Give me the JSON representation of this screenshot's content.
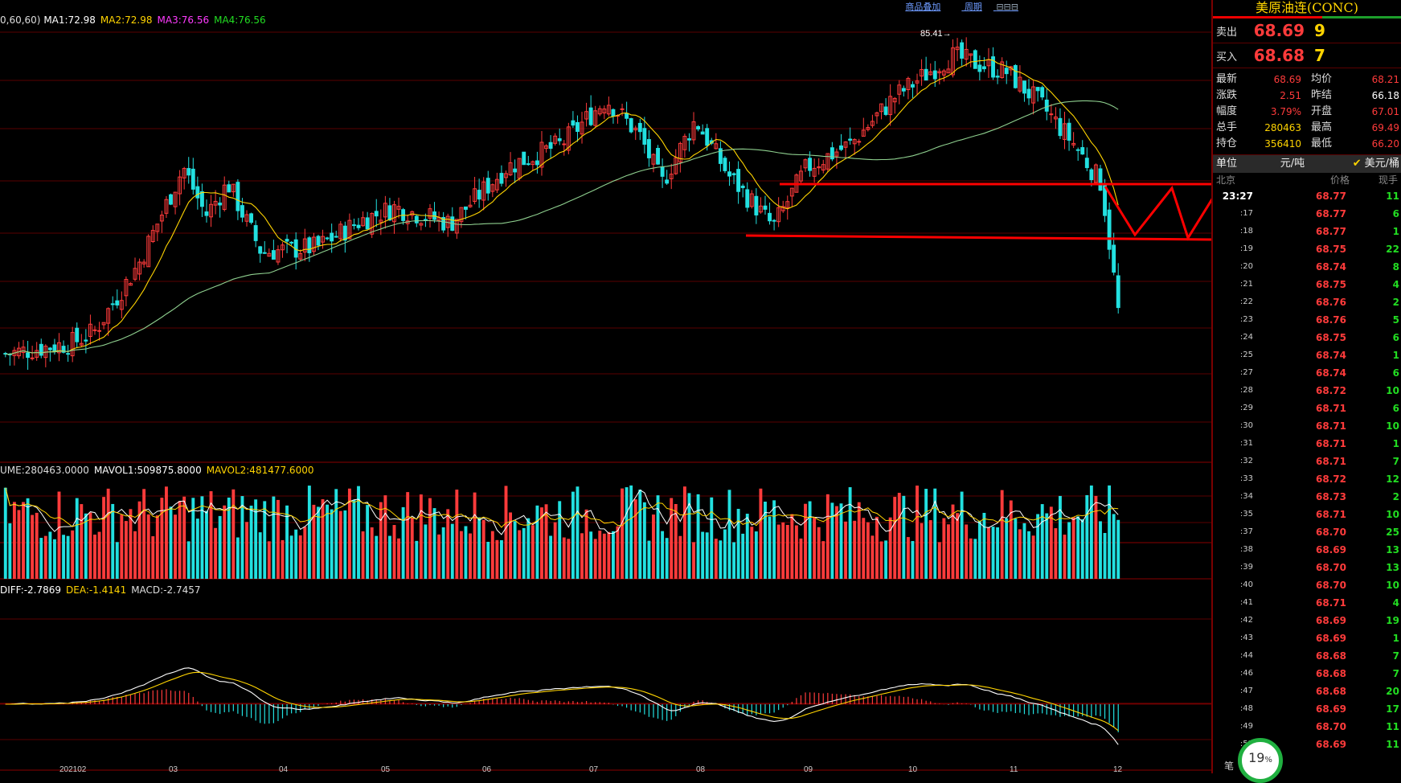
{
  "nav": {
    "overlay_link": "商品叠加",
    "period_link": "周期"
  },
  "main_panel": {
    "ma_params": "0,60,60)",
    "ma_items": [
      {
        "label": "MA1:72.98",
        "color": "#ffffff"
      },
      {
        "label": "MA2:72.98",
        "color": "#ffd400"
      },
      {
        "label": "MA3:76.56",
        "color": "#ff3bff"
      },
      {
        "label": "MA4:76.56",
        "color": "#22dd22"
      }
    ],
    "high_label": "85.41"
  },
  "volume_panel": {
    "items": [
      {
        "label": "UME:280463.0000",
        "color": "#dddddd"
      },
      {
        "label": "MAVOL1:509875.8000",
        "color": "#ffffff"
      },
      {
        "label": "MAVOL2:481477.6000",
        "color": "#ffd400"
      }
    ]
  },
  "macd_panel": {
    "items": [
      {
        "label": "DIFF:-2.7869",
        "color": "#ffffff"
      },
      {
        "label": "DEA:-1.4141",
        "color": "#ffd400"
      },
      {
        "label": "MACD:-2.7457",
        "color": "#dddddd"
      }
    ]
  },
  "x_axis": {
    "labels": [
      "202102",
      "03",
      "04",
      "05",
      "06",
      "07",
      "08",
      "09",
      "10",
      "11",
      "12"
    ]
  },
  "chart_data": [
    {
      "type": "candlestick",
      "anchors": [
        {
          "t": 0,
          "price": 66.8
        },
        {
          "t": 0.06,
          "price": 67.5
        },
        {
          "t": 0.08,
          "price": 68.2
        },
        {
          "t": 0.12,
          "price": 72.5
        },
        {
          "t": 0.16,
          "price": 78.5
        },
        {
          "t": 0.18,
          "price": 75.5
        },
        {
          "t": 0.2,
          "price": 77.5
        },
        {
          "t": 0.23,
          "price": 73.2
        },
        {
          "t": 0.28,
          "price": 73.5
        },
        {
          "t": 0.32,
          "price": 75.2
        },
        {
          "t": 0.35,
          "price": 76.0
        },
        {
          "t": 0.4,
          "price": 75.0
        },
        {
          "t": 0.45,
          "price": 78.5
        },
        {
          "t": 0.5,
          "price": 80.0
        },
        {
          "t": 0.54,
          "price": 82.8
        },
        {
          "t": 0.57,
          "price": 80.5
        },
        {
          "t": 0.59,
          "price": 77.5
        },
        {
          "t": 0.62,
          "price": 81.5
        },
        {
          "t": 0.65,
          "price": 78.0
        },
        {
          "t": 0.69,
          "price": 74.8
        },
        {
          "t": 0.72,
          "price": 78.5
        },
        {
          "t": 0.76,
          "price": 80.0
        },
        {
          "t": 0.8,
          "price": 83.0
        },
        {
          "t": 0.85,
          "price": 85.5
        },
        {
          "t": 0.9,
          "price": 84.5
        },
        {
          "t": 0.93,
          "price": 82.5
        },
        {
          "t": 0.96,
          "price": 80.0
        },
        {
          "t": 0.985,
          "price": 77.5
        },
        {
          "t": 1,
          "price": 69.5
        }
      ],
      "bars": 250,
      "high_label": 85.41
    }
  ],
  "right_panel": {
    "title": "美原油连(CONC)",
    "sell": {
      "label": "卖出",
      "price": "68.69",
      "qty": "9"
    },
    "buy": {
      "label": "买入",
      "price": "68.68",
      "qty": "7"
    },
    "stats": [
      {
        "k": "最新",
        "v": "68.69",
        "vc": "#ff3b3b",
        "k2": "均价",
        "v2": "68.21",
        "v2c": "#ff3b3b"
      },
      {
        "k": "涨跌",
        "v": "2.51",
        "vc": "#ff3b3b",
        "k2": "昨结",
        "v2": "66.18",
        "v2c": "#ffffff"
      },
      {
        "k": "幅度",
        "v": "3.79%",
        "vc": "#ff3b3b",
        "k2": "开盘",
        "v2": "67.01",
        "v2c": "#ff3b3b"
      },
      {
        "k": "总手",
        "v": "280463",
        "vc": "#ffd400",
        "k2": "最高",
        "v2": "69.49",
        "v2c": "#ff3b3b"
      },
      {
        "k": "持仓",
        "v": "356410",
        "vc": "#ffd400",
        "k2": "最低",
        "v2": "66.20",
        "v2c": "#ff3b3b"
      }
    ],
    "unit": {
      "label": "单位",
      "yuan": "元/吨",
      "usd": "美元/桶"
    },
    "tick_header": {
      "time": "北京",
      "price": "价格",
      "qty": "现手"
    },
    "ticks": [
      {
        "t": "23:27",
        "p": "68.77",
        "q": "11"
      },
      {
        "t": ":17",
        "p": "68.77",
        "q": "6"
      },
      {
        "t": ":18",
        "p": "68.77",
        "q": "1"
      },
      {
        "t": ":19",
        "p": "68.75",
        "q": "22"
      },
      {
        "t": ":20",
        "p": "68.74",
        "q": "8"
      },
      {
        "t": ":21",
        "p": "68.75",
        "q": "4"
      },
      {
        "t": ":22",
        "p": "68.76",
        "q": "2"
      },
      {
        "t": ":23",
        "p": "68.76",
        "q": "5"
      },
      {
        "t": ":24",
        "p": "68.75",
        "q": "6"
      },
      {
        "t": ":25",
        "p": "68.74",
        "q": "1"
      },
      {
        "t": ":27",
        "p": "68.74",
        "q": "6"
      },
      {
        "t": ":28",
        "p": "68.72",
        "q": "10"
      },
      {
        "t": ":29",
        "p": "68.71",
        "q": "6"
      },
      {
        "t": ":30",
        "p": "68.71",
        "q": "10"
      },
      {
        "t": ":31",
        "p": "68.71",
        "q": "1"
      },
      {
        "t": ":32",
        "p": "68.71",
        "q": "7"
      },
      {
        "t": ":33",
        "p": "68.72",
        "q": "12"
      },
      {
        "t": ":34",
        "p": "68.73",
        "q": "2"
      },
      {
        "t": ":35",
        "p": "68.71",
        "q": "10"
      },
      {
        "t": ":37",
        "p": "68.70",
        "q": "25"
      },
      {
        "t": ":38",
        "p": "68.69",
        "q": "13"
      },
      {
        "t": ":39",
        "p": "68.70",
        "q": "13"
      },
      {
        "t": ":40",
        "p": "68.70",
        "q": "10"
      },
      {
        "t": ":41",
        "p": "68.71",
        "q": "4"
      },
      {
        "t": ":42",
        "p": "68.69",
        "q": "19"
      },
      {
        "t": ":43",
        "p": "68.69",
        "q": "1"
      },
      {
        "t": ":44",
        "p": "68.68",
        "q": "7"
      },
      {
        "t": ":46",
        "p": "68.68",
        "q": "7"
      },
      {
        "t": ":47",
        "p": "68.68",
        "q": "20"
      },
      {
        "t": ":48",
        "p": "68.69",
        "q": "17"
      },
      {
        "t": ":49",
        "p": "68.70",
        "q": "11"
      },
      {
        "t": ":53",
        "p": "68.69",
        "q": "11"
      }
    ],
    "gauge": {
      "value": "19",
      "unit": "%"
    },
    "footer_char": "笔"
  }
}
